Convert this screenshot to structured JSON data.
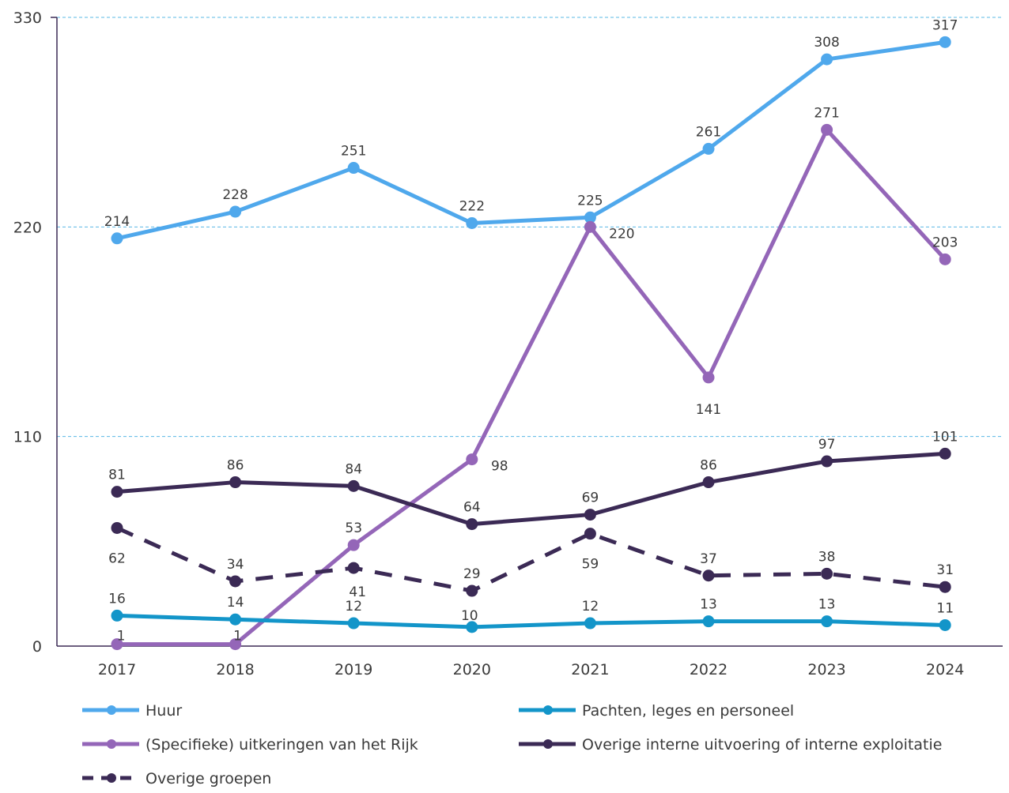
{
  "chart_data": {
    "type": "line",
    "x": [
      "2017",
      "2018",
      "2019",
      "2020",
      "2021",
      "2022",
      "2023",
      "2024"
    ],
    "ylim": [
      0,
      330
    ],
    "yticks": [
      "0",
      "110",
      "220",
      "330"
    ],
    "grid": "horizontal dashed",
    "legend_position": "bottom",
    "series": [
      {
        "name": "Huur",
        "color": "#4fa8ec",
        "dashed": false,
        "values": [
          214,
          228,
          251,
          222,
          225,
          261,
          308,
          317
        ],
        "labels": [
          "214",
          "228",
          "251",
          "222",
          "225",
          "261",
          "308",
          "317"
        ]
      },
      {
        "name": "(Specifieke) uitkeringen van het Rijk",
        "color": "#9466b8",
        "dashed": false,
        "values": [
          1,
          1,
          53,
          98,
          220,
          141,
          271,
          203
        ],
        "labels": [
          "1",
          "1",
          "53",
          "98",
          "220",
          "141",
          "271",
          "203"
        ]
      },
      {
        "name": "Overige groepen",
        "color": "#3b2a55",
        "dashed": true,
        "values": [
          62,
          34,
          41,
          29,
          59,
          37,
          38,
          31
        ],
        "labels": [
          "62",
          "34",
          "41",
          "29",
          "59",
          "37",
          "38",
          "31"
        ]
      },
      {
        "name": "Pachten, leges en personeel",
        "color": "#1395c9",
        "dashed": false,
        "values": [
          16,
          14,
          12,
          10,
          12,
          13,
          13,
          11
        ],
        "labels": [
          "16",
          "14",
          "12",
          "10",
          "12",
          "13",
          "13",
          "11"
        ]
      },
      {
        "name": "Overige interne uitvoering of interne exploitatie",
        "color": "#3b2a55",
        "dashed": false,
        "values": [
          81,
          86,
          84,
          64,
          69,
          86,
          97,
          101
        ],
        "labels": [
          "81",
          "86",
          "84",
          "64",
          "69",
          "86",
          "97",
          "101"
        ]
      }
    ]
  }
}
